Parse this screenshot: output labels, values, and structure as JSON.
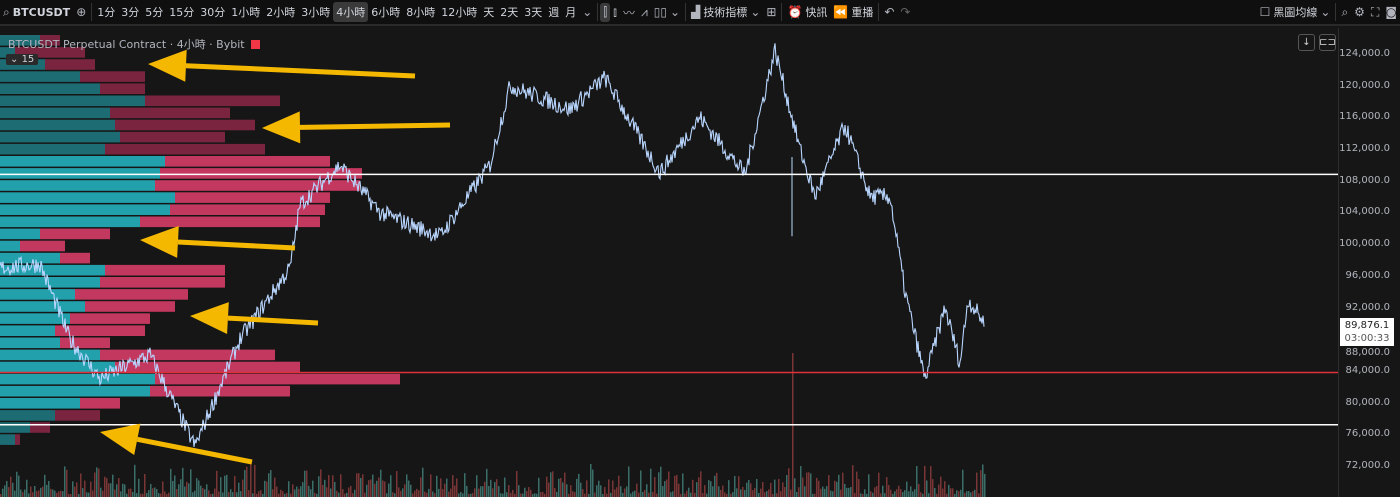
{
  "toolbar": {
    "symbol": "BTCUSDT",
    "intervals": [
      "1分",
      "3分",
      "5分",
      "15分",
      "30分",
      "1小時",
      "2小時",
      "3小時",
      "4小時",
      "6小時",
      "8小時",
      "12小時",
      "天",
      "2天",
      "3天",
      "週",
      "月"
    ],
    "active_interval": "4小時",
    "indicators_label": "技術指標",
    "alert_label": "快訊",
    "replay_label": "重播",
    "layout_label": "黑圖均線"
  },
  "chart": {
    "title": "BTCUSDT Perpetual Contract · 4小時 · Bybit",
    "profile_rows_label": "15",
    "price_ticks": [
      "124,000.0",
      "120,000.0",
      "116,000.0",
      "112,000.0",
      "108,000.0",
      "104,000.0",
      "100,000.0",
      "96,000.0",
      "92,000.0",
      "88,000.0",
      "84,000.0",
      "80,000.0",
      "76,000.0",
      "72,000.0"
    ],
    "current_price": "89,876.1",
    "countdown": "03:00:33",
    "colors": {
      "up": "#26a69a",
      "down": "#ef5350",
      "profile_up": "#22a0ab",
      "profile_down": "#c2385f",
      "arrow": "#f5b800",
      "level_red": "#e0303a",
      "level_white": "#ffffff"
    }
  }
}
